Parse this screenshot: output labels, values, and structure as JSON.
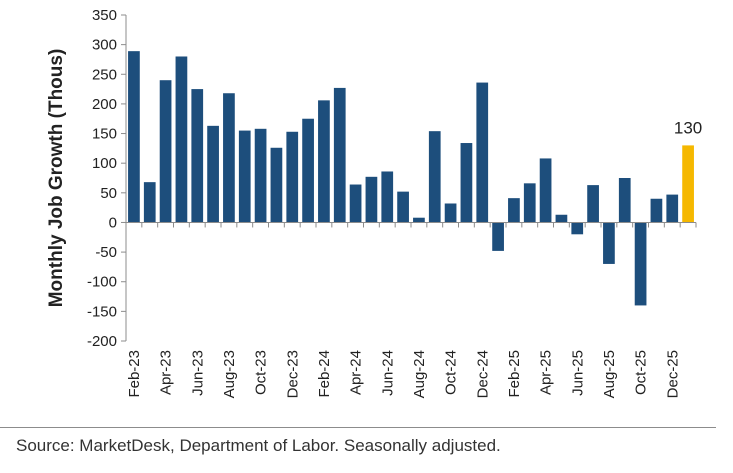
{
  "chart_data": {
    "type": "bar",
    "ylabel": "Monthly Job Growth (Thous)",
    "ylim": [
      -200,
      350
    ],
    "yticks": [
      350,
      300,
      250,
      200,
      150,
      100,
      50,
      0,
      -50,
      -100,
      -150,
      -200
    ],
    "categories": [
      "Feb-23",
      "Mar-23",
      "Apr-23",
      "May-23",
      "Jun-23",
      "Jul-23",
      "Aug-23",
      "Sep-23",
      "Oct-23",
      "Nov-23",
      "Dec-23",
      "Jan-24",
      "Feb-24",
      "Mar-24",
      "Apr-24",
      "May-24",
      "Jun-24",
      "Jul-24",
      "Aug-24",
      "Sep-24",
      "Oct-24",
      "Nov-24",
      "Dec-24",
      "Jan-25",
      "Feb-25",
      "Mar-25",
      "Apr-25",
      "May-25",
      "Jun-25",
      "Jul-25",
      "Aug-25",
      "Sep-25",
      "Oct-25",
      "Nov-25",
      "Dec-25",
      "Jan-26"
    ],
    "xtick_labels": [
      "Feb-23",
      "Apr-23",
      "Jun-23",
      "Aug-23",
      "Oct-23",
      "Dec-23",
      "Feb-24",
      "Apr-24",
      "Jun-24",
      "Aug-24",
      "Oct-24",
      "Dec-24",
      "Feb-25",
      "Apr-25",
      "Jun-25",
      "Aug-25",
      "Oct-25",
      "Dec-25"
    ],
    "values": [
      289,
      68,
      240,
      280,
      225,
      163,
      218,
      155,
      158,
      126,
      153,
      175,
      206,
      227,
      64,
      77,
      86,
      52,
      8,
      154,
      32,
      134,
      236,
      -48,
      41,
      66,
      108,
      13,
      -20,
      63,
      -70,
      75,
      -140,
      40,
      47,
      130
    ],
    "data_labels": [
      {
        "index": 35,
        "text": "130"
      }
    ],
    "colors": {
      "bar": "#1d4e7c",
      "highlight": "#f5b800",
      "axis": "#8c8c8c"
    },
    "highlight_index": 35,
    "grid": false
  },
  "footer": {
    "source": "Source: MarketDesk, Department of Labor. Seasonally adjusted."
  }
}
